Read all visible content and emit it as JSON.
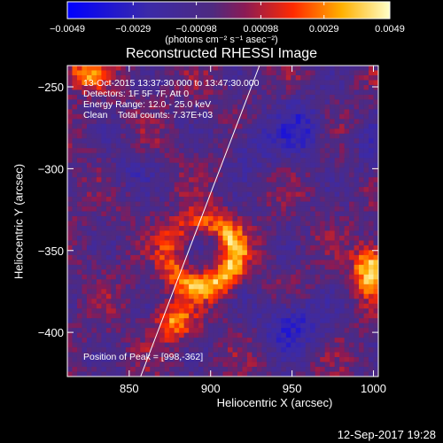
{
  "chart_data": {
    "type": "heatmap",
    "title": "Reconstructed RHESSI Image",
    "xlabel": "Heliocentric X (arcsec)",
    "ylabel": "Heliocentric Y (arcsec)",
    "xlim": [
      812,
      1003
    ],
    "ylim": [
      -427,
      -237
    ],
    "x_ticks": [
      850,
      900,
      950,
      1000
    ],
    "y_ticks": [
      -250,
      -300,
      -350,
      -400
    ],
    "x_tick_labels": [
      "850",
      "900",
      "950",
      "1000"
    ],
    "y_tick_labels": [
      "−250",
      "−300",
      "−350",
      "−400"
    ],
    "colorbar": {
      "ticks": [
        -0.0049,
        -0.0029,
        -0.00098,
        0.00098,
        0.0029,
        0.0049
      ],
      "tick_labels": [
        "−0.0049",
        "−0.0029",
        "−0.00098",
        "0.00098",
        "0.0029",
        "0.0049"
      ],
      "range": [
        -0.0049,
        0.0049
      ],
      "units_label": "(photons cm⁻² s⁻¹ asec⁻²)"
    },
    "annotations": {
      "time": "13-Oct-2015 13:37:30.000 to 13:47:30.000",
      "detectors": "Detectors: 1F 5F 7F, Att 0",
      "energy": "Energy Range: 12.0 - 25.0 keV",
      "clean": "Clean    Total counts: 7.37E+03",
      "peak": "Position of Peak = [998,-362]"
    },
    "limb_line": [
      [
        857,
        -427
      ],
      [
        930,
        -237
      ]
    ],
    "sources": [
      {
        "x": 895,
        "y": -352,
        "sx": 20,
        "sy": 20,
        "amp": 0.0042,
        "ring": true
      },
      {
        "x": 878,
        "y": -393,
        "sx": 8,
        "sy": 8,
        "amp": 0.0035
      },
      {
        "x": 998,
        "y": -362,
        "sx": 7,
        "sy": 10,
        "amp": 0.0049
      },
      {
        "x": 822,
        "y": -242,
        "sx": 10,
        "sy": 7,
        "amp": 0.0032
      }
    ],
    "negatives": [
      {
        "x": 925,
        "y": -285,
        "sx": 10,
        "sy": 12,
        "amp": -0.0016
      },
      {
        "x": 955,
        "y": -275,
        "sx": 12,
        "sy": 14,
        "amp": -0.0022
      },
      {
        "x": 950,
        "y": -395,
        "sx": 14,
        "sy": 11,
        "amp": -0.0026
      },
      {
        "x": 1000,
        "y": -290,
        "sx": 8,
        "sy": 12,
        "amp": -0.0016
      },
      {
        "x": 850,
        "y": -300,
        "sx": 10,
        "sy": 10,
        "amp": -0.0012
      }
    ],
    "grid": false
  },
  "footer": {
    "timestamp": "12-Sep-2017 19:28"
  }
}
